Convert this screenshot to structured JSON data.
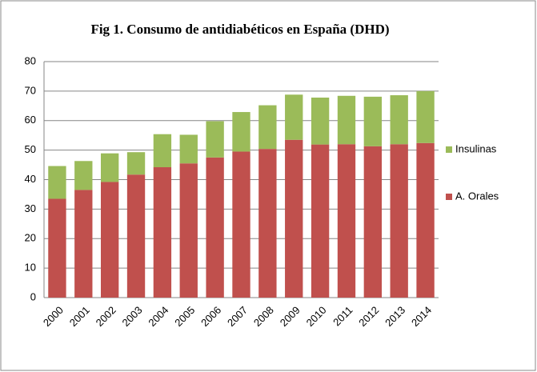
{
  "chart_data": {
    "type": "bar",
    "stacked": true,
    "title": "Fig 1. Consumo de antidiabéticos en España (DHD)",
    "categories": [
      "2000",
      "2001",
      "2002",
      "2003",
      "2004",
      "2005",
      "2006",
      "2007",
      "2008",
      "2009",
      "2010",
      "2011",
      "2012",
      "2013",
      "2014"
    ],
    "series": [
      {
        "name": "A. Orales",
        "color": "#c0504d",
        "values": [
          33.5,
          36.5,
          39.2,
          41.7,
          44.2,
          45.5,
          47.5,
          49.5,
          50.4,
          53.5,
          51.9,
          52,
          51.3,
          52,
          52.4
        ]
      },
      {
        "name": "Insulinas",
        "color": "#9bbb59",
        "values": [
          11.1,
          9.8,
          9.7,
          7.6,
          11.2,
          9.7,
          12.3,
          13.4,
          14.8,
          15.3,
          15.9,
          16.4,
          16.8,
          16.6,
          17.6
        ]
      }
    ],
    "ylim": [
      0,
      80
    ],
    "yticks": [
      0,
      10,
      20,
      30,
      40,
      50,
      60,
      70,
      80
    ],
    "grid": true,
    "legend": "right"
  }
}
